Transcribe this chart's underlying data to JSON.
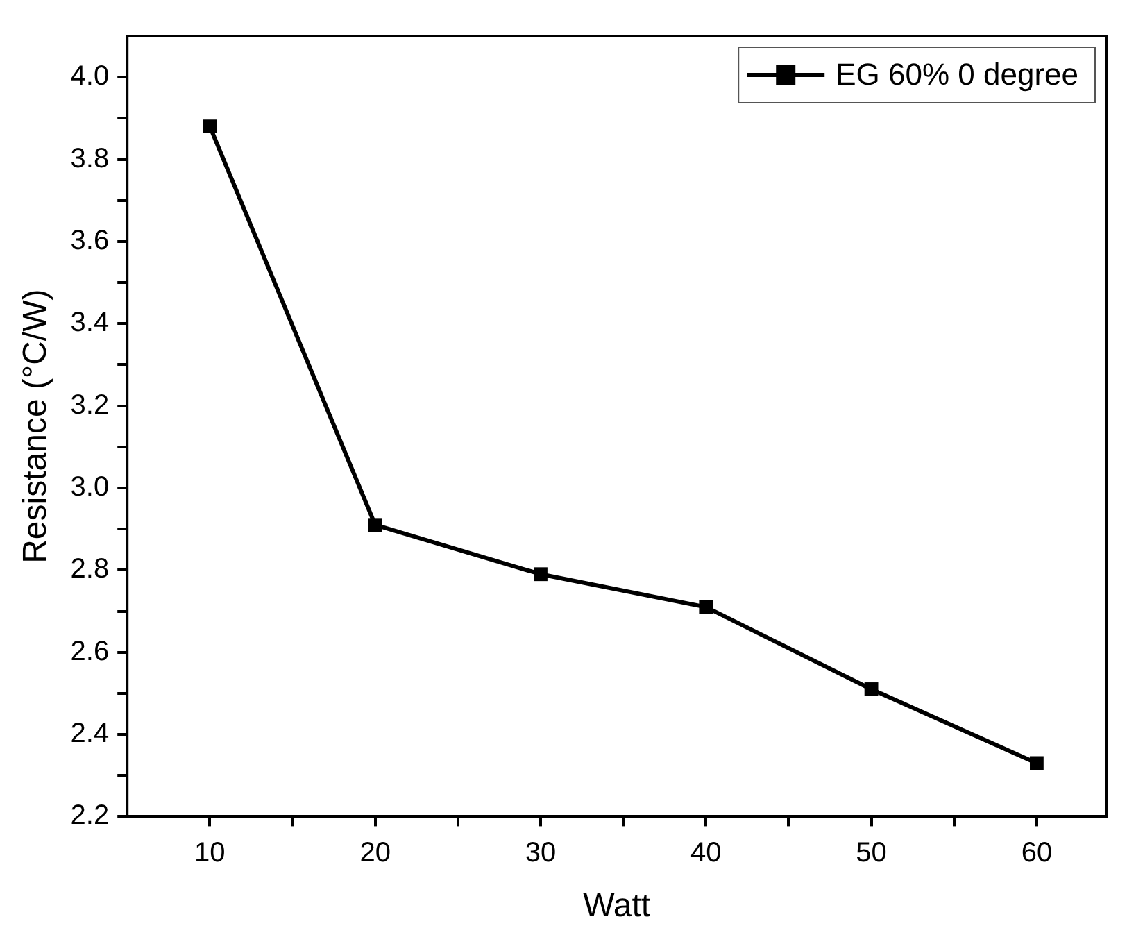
{
  "chart_data": {
    "type": "line",
    "xlabel": "Watt",
    "ylabel": "Resistance (°C/W)",
    "x": [
      10,
      20,
      30,
      40,
      50,
      60
    ],
    "series": [
      {
        "name": "EG 60% 0 degree",
        "color": "#000000",
        "values": [
          3.88,
          2.91,
          2.79,
          2.71,
          2.51,
          2.33
        ]
      }
    ],
    "xlim": [
      5,
      64.2
    ],
    "ylim": [
      2.2,
      4.1
    ],
    "xticks": [
      10,
      {
        "value": 15,
        "label": null
      },
      20,
      {
        "value": 25,
        "label": null
      },
      30,
      {
        "value": 35,
        "label": null
      },
      40,
      {
        "value": 45,
        "label": null
      },
      50,
      {
        "value": 55,
        "label": null
      },
      60
    ],
    "yticks": [
      2.2,
      {
        "value": 2.3,
        "label": null
      },
      2.4,
      {
        "value": 2.5,
        "label": null
      },
      2.6,
      {
        "value": 2.7,
        "label": null
      },
      2.8,
      {
        "value": 2.9,
        "label": null
      },
      {
        "value": 3,
        "label": "3.0"
      },
      {
        "value": 3.1,
        "label": null
      },
      3.2,
      {
        "value": 3.3,
        "label": null
      },
      3.4,
      {
        "value": 3.5,
        "label": null
      },
      3.6,
      {
        "value": 3.7,
        "label": null
      },
      3.8,
      {
        "value": 3.9,
        "label": null
      },
      {
        "value": 4,
        "label": "4.0"
      }
    ],
    "grid": false,
    "legend": "top right",
    "marker": "square",
    "line_style": "solid"
  }
}
